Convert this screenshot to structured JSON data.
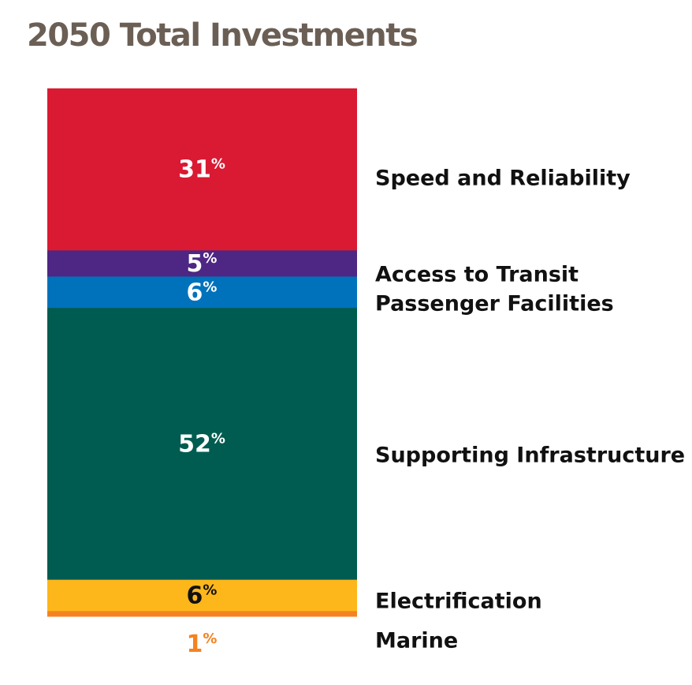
{
  "chart_data": {
    "type": "bar",
    "stacked": true,
    "title": "2050 Total Investments",
    "percent_suffix": "%",
    "series": [
      {
        "name": "Speed and Reliability",
        "value": 31,
        "label": "31",
        "color": "#da1a32",
        "label_color": "#ffffff"
      },
      {
        "name": "Access to Transit",
        "value": 5,
        "label": "5",
        "color": "#4e2683",
        "label_color": "#ffffff"
      },
      {
        "name": "Passenger Facilities",
        "value": 6,
        "label": "6",
        "color": "#0072bc",
        "label_color": "#ffffff"
      },
      {
        "name": "Supporting Infrastructure",
        "value": 52,
        "label": "52",
        "color": "#005c50",
        "label_color": "#ffffff"
      },
      {
        "name": "Electrification",
        "value": 6,
        "label": "6",
        "color": "#fdb71a",
        "label_color": "#111111"
      },
      {
        "name": "Marine",
        "value": 1,
        "label": "1",
        "color": "#f58220",
        "label_color": "#f58220"
      }
    ]
  }
}
